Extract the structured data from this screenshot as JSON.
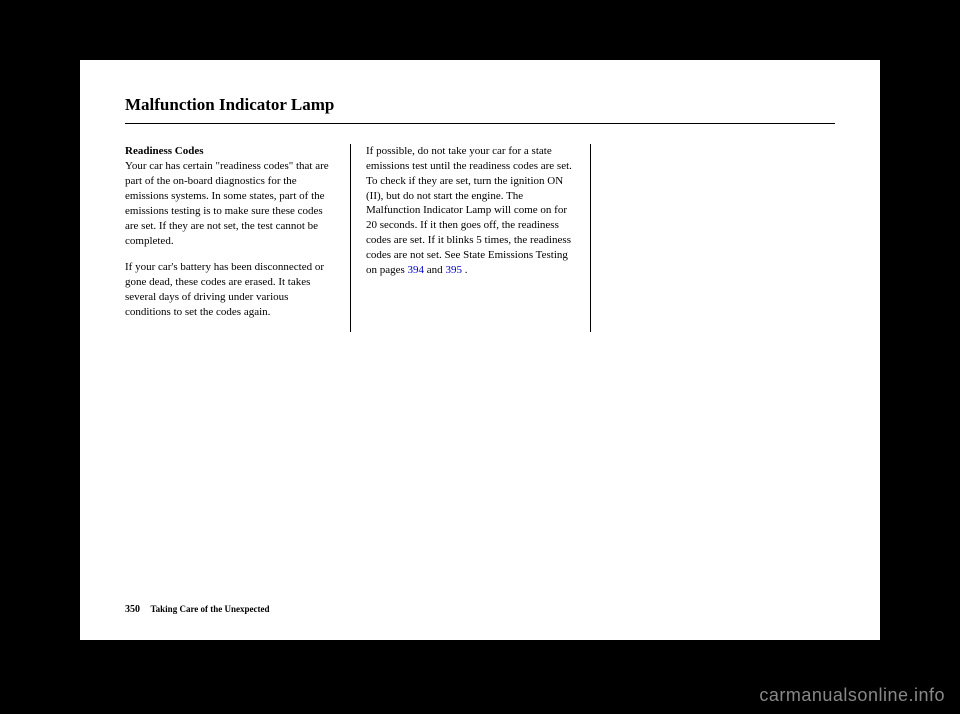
{
  "page": {
    "title": "Malfunction Indicator Lamp",
    "column1": {
      "heading": "Readiness Codes",
      "para1": "Your car has certain \"readiness codes\" that are part of the on-board diagnostics for the emissions systems. In some states, part of the emissions testing is to make sure these codes are set. If they are not set, the test cannot be completed.",
      "para2": "If your car's battery has been disconnected or gone dead, these codes are erased. It takes several days of driving under various conditions to set the codes again."
    },
    "column2": {
      "para1_part1": "If possible, do not take your car for a state emissions test until the readiness codes are set. To check if they are set, turn the ignition ON (II), but do not start the engine. The Malfunction Indicator Lamp will come on for 20 seconds. If it then goes off, the readiness codes are set. If it blinks 5 times, the readiness codes are not set. See State Emissions Testing on pages ",
      "link1": "394",
      "and": " and ",
      "link2": "395",
      "period": " ."
    },
    "footer": {
      "pageNumber": "350",
      "section": "Taking Care of the Unexpected"
    }
  },
  "watermark": "carmanualsonline.info"
}
